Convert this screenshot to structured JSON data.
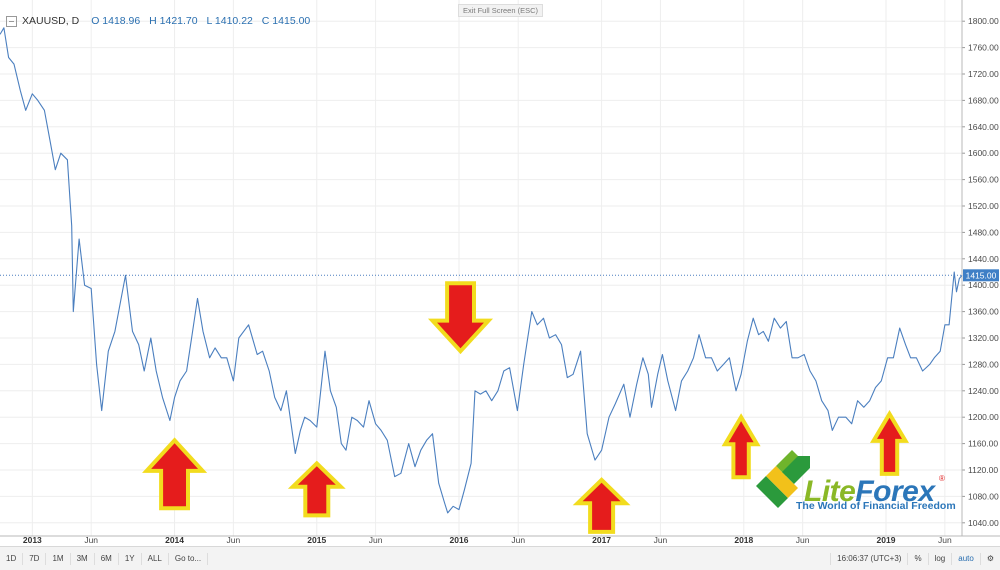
{
  "window": {
    "exit_fullscreen_label": "Exit Full Screen (ESC)"
  },
  "header": {
    "symbol": "XAUUSD, D",
    "open": "O 1418.96",
    "high": "H 1421.70",
    "low": "L 1410.22",
    "close": "C 1415.00"
  },
  "chart_data": {
    "type": "line",
    "symbol": "XAUUSD",
    "title": "",
    "xlabel": "",
    "ylabel": "",
    "ylim": [
      1020,
      1820
    ],
    "xlim": [
      "2012-10-10",
      "2019-07-15"
    ],
    "grid": true,
    "line_color": "#4b7fbf",
    "current_price": 1415.0,
    "current_price_label": "1415.00",
    "y_ticks": [
      "1040.00",
      "1080.00",
      "1120.00",
      "1160.00",
      "1200.00",
      "1240.00",
      "1280.00",
      "1320.00",
      "1360.00",
      "1400.00",
      "1440.00",
      "1480.00",
      "1520.00",
      "1560.00",
      "1600.00",
      "1640.00",
      "1680.00",
      "1720.00",
      "1760.00",
      "1800.00"
    ],
    "x_ticks": [
      {
        "date": "2013-01-01",
        "label": "2013",
        "year": true
      },
      {
        "date": "2013-06-01",
        "label": "Jun",
        "year": false
      },
      {
        "date": "2014-01-01",
        "label": "2014",
        "year": true
      },
      {
        "date": "2014-06-01",
        "label": "Jun",
        "year": false
      },
      {
        "date": "2015-01-01",
        "label": "2015",
        "year": true
      },
      {
        "date": "2015-06-01",
        "label": "Jun",
        "year": false
      },
      {
        "date": "2016-01-01",
        "label": "2016",
        "year": true
      },
      {
        "date": "2016-06-01",
        "label": "Jun",
        "year": false
      },
      {
        "date": "2017-01-01",
        "label": "2017",
        "year": true
      },
      {
        "date": "2017-06-01",
        "label": "Jun",
        "year": false
      },
      {
        "date": "2018-01-01",
        "label": "2018",
        "year": true
      },
      {
        "date": "2018-06-01",
        "label": "Jun",
        "year": false
      },
      {
        "date": "2019-01-01",
        "label": "2019",
        "year": true
      },
      {
        "date": "2019-06-01",
        "label": "Jun",
        "year": false
      }
    ],
    "series": [
      {
        "x": [
          "2012-10-10",
          "2012-10-20",
          "2012-11-01",
          "2012-11-15",
          "2012-12-01",
          "2012-12-15",
          "2013-01-01",
          "2013-01-15",
          "2013-02-01",
          "2013-02-15",
          "2013-03-01",
          "2013-03-15",
          "2013-04-01",
          "2013-04-12",
          "2013-04-16",
          "2013-05-01",
          "2013-05-15",
          "2013-06-01",
          "2013-06-15",
          "2013-06-28",
          "2013-07-15",
          "2013-08-01",
          "2013-08-28",
          "2013-09-15",
          "2013-10-01",
          "2013-10-15",
          "2013-11-01",
          "2013-11-15",
          "2013-12-01",
          "2013-12-20",
          "2014-01-01",
          "2014-01-15",
          "2014-02-01",
          "2014-02-15",
          "2014-03-01",
          "2014-03-15",
          "2014-04-01",
          "2014-04-15",
          "2014-05-01",
          "2014-05-15",
          "2014-06-01",
          "2014-06-15",
          "2014-07-10",
          "2014-08-01",
          "2014-08-15",
          "2014-09-01",
          "2014-09-15",
          "2014-10-01",
          "2014-10-15",
          "2014-11-07",
          "2014-11-20",
          "2014-12-01",
          "2014-12-15",
          "2015-01-01",
          "2015-01-22",
          "2015-02-05",
          "2015-02-20",
          "2015-03-05",
          "2015-03-17",
          "2015-04-01",
          "2015-04-15",
          "2015-05-01",
          "2015-05-15",
          "2015-06-01",
          "2015-06-15",
          "2015-07-01",
          "2015-07-20",
          "2015-08-05",
          "2015-08-25",
          "2015-09-10",
          "2015-09-25",
          "2015-10-10",
          "2015-10-25",
          "2015-11-10",
          "2015-11-25",
          "2015-12-03",
          "2015-12-17",
          "2016-01-01",
          "2016-01-15",
          "2016-02-01",
          "2016-02-11",
          "2016-02-25",
          "2016-03-10",
          "2016-03-25",
          "2016-04-10",
          "2016-04-25",
          "2016-05-10",
          "2016-05-30",
          "2016-06-15",
          "2016-06-24",
          "2016-07-06",
          "2016-07-20",
          "2016-08-05",
          "2016-08-20",
          "2016-09-05",
          "2016-09-20",
          "2016-10-05",
          "2016-10-20",
          "2016-11-08",
          "2016-11-25",
          "2016-12-15",
          "2017-01-01",
          "2017-01-20",
          "2017-02-05",
          "2017-02-27",
          "2017-03-15",
          "2017-04-01",
          "2017-04-17",
          "2017-05-01",
          "2017-05-09",
          "2017-05-25",
          "2017-06-06",
          "2017-06-20",
          "2017-07-10",
          "2017-07-25",
          "2017-08-10",
          "2017-08-25",
          "2017-09-08",
          "2017-09-25",
          "2017-10-10",
          "2017-10-25",
          "2017-11-10",
          "2017-11-25",
          "2017-12-12",
          "2017-12-25",
          "2018-01-10",
          "2018-01-25",
          "2018-02-08",
          "2018-02-20",
          "2018-03-05",
          "2018-03-20",
          "2018-04-05",
          "2018-04-20",
          "2018-05-05",
          "2018-05-20",
          "2018-06-05",
          "2018-06-20",
          "2018-07-05",
          "2018-07-20",
          "2018-08-05",
          "2018-08-16",
          "2018-09-01",
          "2018-09-20",
          "2018-10-05",
          "2018-10-20",
          "2018-11-05",
          "2018-11-20",
          "2018-12-05",
          "2018-12-20",
          "2019-01-05",
          "2019-01-20",
          "2019-02-05",
          "2019-02-20",
          "2019-03-05",
          "2019-03-20",
          "2019-04-05",
          "2019-04-23",
          "2019-05-05",
          "2019-05-20",
          "2019-06-01",
          "2019-06-12",
          "2019-06-20",
          "2019-06-25",
          "2019-07-01",
          "2019-07-08",
          "2019-07-15"
        ],
        "y": [
          1780,
          1790,
          1745,
          1735,
          1695,
          1665,
          1690,
          1680,
          1665,
          1620,
          1575,
          1600,
          1590,
          1490,
          1360,
          1470,
          1400,
          1395,
          1280,
          1210,
          1300,
          1330,
          1415,
          1330,
          1310,
          1270,
          1320,
          1270,
          1230,
          1195,
          1230,
          1255,
          1270,
          1325,
          1380,
          1330,
          1290,
          1305,
          1290,
          1290,
          1255,
          1320,
          1340,
          1295,
          1300,
          1270,
          1230,
          1210,
          1240,
          1145,
          1180,
          1200,
          1195,
          1185,
          1300,
          1240,
          1215,
          1160,
          1150,
          1200,
          1195,
          1185,
          1225,
          1190,
          1180,
          1165,
          1110,
          1115,
          1160,
          1125,
          1150,
          1165,
          1175,
          1100,
          1070,
          1055,
          1065,
          1060,
          1090,
          1130,
          1240,
          1235,
          1240,
          1225,
          1240,
          1270,
          1275,
          1210,
          1280,
          1315,
          1360,
          1340,
          1350,
          1320,
          1325,
          1310,
          1260,
          1265,
          1300,
          1175,
          1135,
          1150,
          1200,
          1220,
          1250,
          1200,
          1250,
          1290,
          1265,
          1215,
          1265,
          1295,
          1255,
          1210,
          1255,
          1270,
          1290,
          1325,
          1290,
          1290,
          1270,
          1280,
          1290,
          1240,
          1265,
          1315,
          1350,
          1325,
          1330,
          1315,
          1350,
          1335,
          1345,
          1290,
          1290,
          1295,
          1270,
          1255,
          1225,
          1210,
          1180,
          1200,
          1200,
          1190,
          1225,
          1215,
          1225,
          1245,
          1255,
          1290,
          1290,
          1335,
          1310,
          1290,
          1290,
          1270,
          1280,
          1290,
          1300,
          1340,
          1340,
          1390,
          1420,
          1390,
          1410,
          1415
        ]
      }
    ],
    "annotations": [
      {
        "type": "arrow",
        "direction": "up",
        "date": "2014-01-01",
        "price": 1165,
        "size": "large"
      },
      {
        "type": "arrow",
        "direction": "up",
        "date": "2015-01-01",
        "price": 1130,
        "size": "medium"
      },
      {
        "type": "arrow",
        "direction": "down",
        "date": "2016-01-05",
        "price": 1300,
        "size": "large"
      },
      {
        "type": "arrow",
        "direction": "up",
        "date": "2017-01-01",
        "price": 1105,
        "size": "medium"
      },
      {
        "type": "arrow",
        "direction": "up",
        "date": "2017-12-25",
        "price": 1200,
        "size": "small"
      },
      {
        "type": "arrow",
        "direction": "up",
        "date": "2019-01-10",
        "price": 1205,
        "size": "small"
      }
    ],
    "arrow_fill": "#e51c1c",
    "arrow_outline": "#f2dc1e"
  },
  "toolbar": {
    "ranges": [
      "1D",
      "7D",
      "1M",
      "3M",
      "6M",
      "1Y",
      "ALL"
    ],
    "goto_label": "Go to...",
    "time_label": "16:06:37 (UTC+3)",
    "percent_label": "%",
    "log_label": "log",
    "auto_label": "auto",
    "settings_icon": "gear-icon"
  },
  "logo": {
    "lite": "Lite",
    "forex": "Forex",
    "registered": "®",
    "tagline": "The World of Financial Freedom",
    "green": "#8ab826",
    "blue": "#2b76b9"
  }
}
